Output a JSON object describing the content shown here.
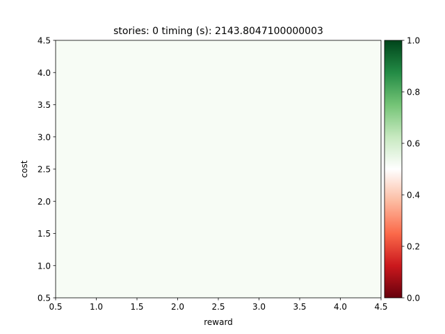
{
  "chart_data": {
    "type": "heatmap",
    "title": "stories: 0 timing (s): 2143.8047100000003",
    "xlabel": "reward",
    "ylabel": "cost",
    "xlim": [
      0.5,
      4.5
    ],
    "ylim": [
      0.5,
      4.5
    ],
    "xticks": [
      "0.5",
      "1.0",
      "1.5",
      "2.0",
      "2.5",
      "3.0",
      "3.5",
      "4.0",
      "4.5"
    ],
    "yticks": [
      "0.5",
      "1.0",
      "1.5",
      "2.0",
      "2.5",
      "3.0",
      "3.5",
      "4.0",
      "4.5"
    ],
    "cell_fill": "#f7fcf5",
    "grid": false,
    "colorbar": {
      "range": [
        0.0,
        1.0
      ],
      "ticks": [
        "0.0",
        "0.2",
        "0.4",
        "0.6",
        "0.8",
        "1.0"
      ],
      "colors": [
        "#67000d",
        "#cb181d",
        "#fb6a4a",
        "#fcbba1",
        "#ffffff",
        "#c7e9c0",
        "#74c476",
        "#238b45",
        "#00441b"
      ],
      "placement": "right"
    }
  }
}
